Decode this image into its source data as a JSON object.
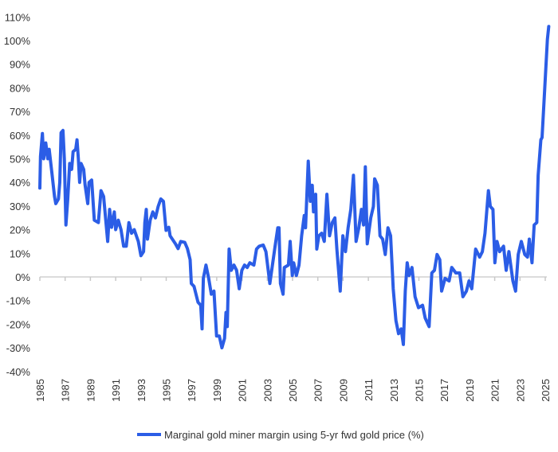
{
  "chart_data": {
    "type": "line",
    "title": "",
    "xlabel": "",
    "ylabel": "",
    "xlim": [
      1985,
      2025
    ],
    "ylim": [
      -40,
      110
    ],
    "x_ticks": [
      "1985",
      "1987",
      "1989",
      "1991",
      "1993",
      "1995",
      "1997",
      "1999",
      "2001",
      "2003",
      "2005",
      "2007",
      "2009",
      "2011",
      "2013",
      "2015",
      "2017",
      "2019",
      "2021",
      "2023",
      "2025"
    ],
    "y_ticks": [
      "110%",
      "100%",
      "90%",
      "80%",
      "70%",
      "60%",
      "50%",
      "40%",
      "30%",
      "20%",
      "10%",
      "0%",
      "-10%",
      "-20%",
      "-30%",
      "-40%"
    ],
    "grid": false,
    "zero_line": true,
    "legend_position": "bottom",
    "color": "#2b5de6",
    "series": [
      {
        "name": "Marginal gold miner margin using 5-yr fwd gold price (%)",
        "points": [
          [
            1985.0,
            37.6
          ],
          [
            1985.05,
            51
          ],
          [
            1985.2,
            60.7
          ],
          [
            1985.3,
            50
          ],
          [
            1985.47,
            56.7
          ],
          [
            1985.63,
            50
          ],
          [
            1985.74,
            54
          ],
          [
            1985.95,
            44
          ],
          [
            1986.16,
            34
          ],
          [
            1986.26,
            31
          ],
          [
            1986.47,
            33
          ],
          [
            1986.58,
            40
          ],
          [
            1986.68,
            61
          ],
          [
            1986.83,
            62
          ],
          [
            1986.94,
            50
          ],
          [
            1987.06,
            22
          ],
          [
            1987.21,
            33
          ],
          [
            1987.36,
            48
          ],
          [
            1987.52,
            45.5
          ],
          [
            1987.63,
            53
          ],
          [
            1987.84,
            54
          ],
          [
            1987.94,
            58
          ],
          [
            1988.05,
            50
          ],
          [
            1988.15,
            40
          ],
          [
            1988.26,
            48
          ],
          [
            1988.47,
            45.5
          ],
          [
            1988.58,
            39
          ],
          [
            1988.79,
            31
          ],
          [
            1988.89,
            40
          ],
          [
            1989.1,
            41
          ],
          [
            1989.31,
            24
          ],
          [
            1989.63,
            23
          ],
          [
            1989.84,
            36.5
          ],
          [
            1990.05,
            34
          ],
          [
            1990.37,
            15
          ],
          [
            1990.52,
            28.6
          ],
          [
            1990.68,
            21
          ],
          [
            1990.89,
            27.5
          ],
          [
            1991.0,
            20
          ],
          [
            1991.21,
            24
          ],
          [
            1991.42,
            20
          ],
          [
            1991.63,
            13
          ],
          [
            1991.84,
            13
          ],
          [
            1992.05,
            23
          ],
          [
            1992.26,
            18.5
          ],
          [
            1992.47,
            20
          ],
          [
            1992.79,
            15
          ],
          [
            1993.0,
            9
          ],
          [
            1993.21,
            10.7
          ],
          [
            1993.31,
            23
          ],
          [
            1993.42,
            28.6
          ],
          [
            1993.52,
            16
          ],
          [
            1993.73,
            24
          ],
          [
            1993.94,
            27.5
          ],
          [
            1994.15,
            25
          ],
          [
            1994.36,
            29.8
          ],
          [
            1994.57,
            33
          ],
          [
            1994.78,
            32
          ],
          [
            1994.99,
            19.7
          ],
          [
            1995.2,
            21
          ],
          [
            1995.31,
            17.4
          ],
          [
            1995.73,
            14
          ],
          [
            1995.94,
            12
          ],
          [
            1996.15,
            15
          ],
          [
            1996.47,
            14.6
          ],
          [
            1996.68,
            12
          ],
          [
            1996.89,
            7.3
          ],
          [
            1996.99,
            -2.8
          ],
          [
            1997.2,
            -4
          ],
          [
            1997.52,
            -10.7
          ],
          [
            1997.73,
            -12
          ],
          [
            1997.84,
            -22
          ],
          [
            1997.94,
            -0.6
          ],
          [
            1998.15,
            5
          ],
          [
            1998.36,
            -0.6
          ],
          [
            1998.57,
            -7.3
          ],
          [
            1998.78,
            -6
          ],
          [
            1998.99,
            -25
          ],
          [
            1999.2,
            -25
          ],
          [
            1999.41,
            -30
          ],
          [
            1999.62,
            -26
          ],
          [
            1999.73,
            -15
          ],
          [
            1999.83,
            -21
          ],
          [
            1999.98,
            11.8
          ],
          [
            2000.15,
            2.8
          ],
          [
            2000.36,
            5
          ],
          [
            2000.57,
            2.8
          ],
          [
            2000.78,
            -5
          ],
          [
            2000.99,
            2.8
          ],
          [
            2001.2,
            5
          ],
          [
            2001.41,
            4
          ],
          [
            2001.62,
            6
          ],
          [
            2001.94,
            5
          ],
          [
            2002.15,
            11.8
          ],
          [
            2002.36,
            13
          ],
          [
            2002.68,
            13.5
          ],
          [
            2002.89,
            10.7
          ],
          [
            2003.2,
            -2.8
          ],
          [
            2003.62,
            13
          ],
          [
            2003.83,
            20.8
          ],
          [
            2003.93,
            20.8
          ],
          [
            2004.04,
            -2.8
          ],
          [
            2004.25,
            -7.3
          ],
          [
            2004.35,
            4
          ],
          [
            2004.67,
            5
          ],
          [
            2004.81,
            15
          ],
          [
            2004.98,
            0.6
          ],
          [
            2005.09,
            6
          ],
          [
            2005.3,
            0.6
          ],
          [
            2005.51,
            5
          ],
          [
            2005.72,
            17.4
          ],
          [
            2005.93,
            26
          ],
          [
            2006.03,
            20.8
          ],
          [
            2006.24,
            49
          ],
          [
            2006.41,
            32
          ],
          [
            2006.56,
            38.8
          ],
          [
            2006.66,
            27.5
          ],
          [
            2006.83,
            35
          ],
          [
            2006.92,
            11.8
          ],
          [
            2007.08,
            17.4
          ],
          [
            2007.3,
            18.5
          ],
          [
            2007.51,
            15
          ],
          [
            2007.72,
            35
          ],
          [
            2007.93,
            17.4
          ],
          [
            2008.14,
            23
          ],
          [
            2008.35,
            25
          ],
          [
            2008.51,
            11.8
          ],
          [
            2008.77,
            -6
          ],
          [
            2008.98,
            17.4
          ],
          [
            2009.19,
            10.7
          ],
          [
            2009.4,
            20.8
          ],
          [
            2009.61,
            28.6
          ],
          [
            2009.82,
            43
          ],
          [
            2010.03,
            15
          ],
          [
            2010.24,
            20.8
          ],
          [
            2010.45,
            28.6
          ],
          [
            2010.62,
            22
          ],
          [
            2010.76,
            46.6
          ],
          [
            2010.91,
            14
          ],
          [
            2011.19,
            25
          ],
          [
            2011.4,
            29.8
          ],
          [
            2011.5,
            41.5
          ],
          [
            2011.71,
            38.8
          ],
          [
            2011.92,
            17.4
          ],
          [
            2012.13,
            16
          ],
          [
            2012.34,
            9.5
          ],
          [
            2012.55,
            20.8
          ],
          [
            2012.76,
            17.4
          ],
          [
            2012.97,
            -5
          ],
          [
            2013.18,
            -18.5
          ],
          [
            2013.39,
            -24
          ],
          [
            2013.6,
            -22
          ],
          [
            2013.77,
            -28.6
          ],
          [
            2013.92,
            -6
          ],
          [
            2014.07,
            6
          ],
          [
            2014.23,
            0.6
          ],
          [
            2014.45,
            4
          ],
          [
            2014.7,
            -8.4
          ],
          [
            2014.97,
            -13
          ],
          [
            2015.29,
            -12
          ],
          [
            2015.5,
            -17.4
          ],
          [
            2015.81,
            -21
          ],
          [
            2016.02,
            1.7
          ],
          [
            2016.23,
            2.8
          ],
          [
            2016.44,
            9.5
          ],
          [
            2016.65,
            7.3
          ],
          [
            2016.8,
            -6
          ],
          [
            2017.07,
            -0.6
          ],
          [
            2017.39,
            -1.7
          ],
          [
            2017.6,
            4
          ],
          [
            2017.92,
            1.7
          ],
          [
            2018.23,
            1.7
          ],
          [
            2018.48,
            -8.4
          ],
          [
            2018.76,
            -6
          ],
          [
            2018.97,
            -1.7
          ],
          [
            2019.18,
            -5
          ],
          [
            2019.49,
            11.8
          ],
          [
            2019.81,
            8.4
          ],
          [
            2020.02,
            10.7
          ],
          [
            2020.23,
            18.5
          ],
          [
            2020.5,
            36.5
          ],
          [
            2020.65,
            29.8
          ],
          [
            2020.86,
            28.6
          ],
          [
            2021.01,
            6
          ],
          [
            2021.18,
            15
          ],
          [
            2021.39,
            10.7
          ],
          [
            2021.7,
            13
          ],
          [
            2021.91,
            2.8
          ],
          [
            2022.12,
            10.7
          ],
          [
            2022.44,
            -1.7
          ],
          [
            2022.65,
            -6
          ],
          [
            2022.86,
            9.5
          ],
          [
            2023.11,
            15
          ],
          [
            2023.38,
            9.5
          ],
          [
            2023.59,
            8.4
          ],
          [
            2023.74,
            16
          ],
          [
            2023.95,
            6
          ],
          [
            2024.12,
            22
          ],
          [
            2024.33,
            23
          ],
          [
            2024.44,
            43
          ],
          [
            2024.65,
            58
          ],
          [
            2024.75,
            59
          ],
          [
            2024.96,
            80
          ],
          [
            2025.17,
            100.5
          ],
          [
            2025.28,
            106
          ]
        ]
      }
    ]
  }
}
